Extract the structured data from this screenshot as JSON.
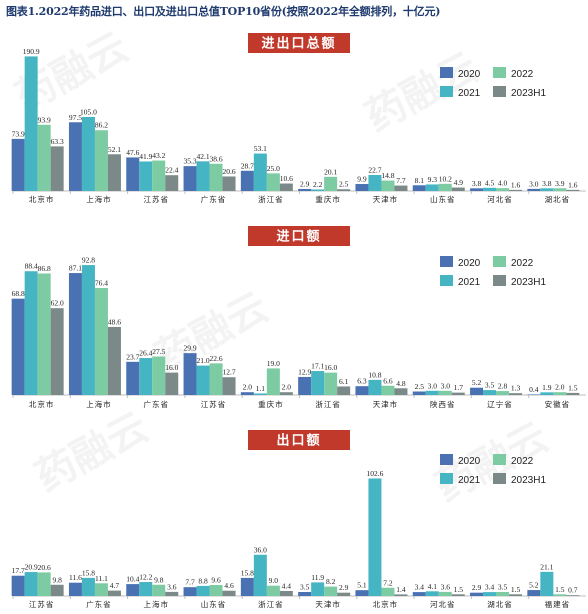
{
  "figure_title": "图表1.2022年药品进口、出口及进出口总值TOP10省份(按照2022年全额排列，十亿元)",
  "watermark_text": "药融云",
  "colors": {
    "2020": "#4a72b2",
    "2022": "#7ccba2",
    "2021": "#45b5c4",
    "2023H1": "#7b8a89",
    "title_box": "#c0392b"
  },
  "chart_data": [
    {
      "type": "bar",
      "title": "进出口总额",
      "categories": [
        "北京市",
        "上海市",
        "江苏省",
        "广东省",
        "浙江省",
        "重庆市",
        "天津市",
        "山东省",
        "河北省",
        "湖北省"
      ],
      "series": [
        {
          "name": "2020",
          "values": [
            73.9,
            97.5,
            47.6,
            35.3,
            28.7,
            2.9,
            9.9,
            8.1,
            3.8,
            3.0
          ]
        },
        {
          "name": "2021",
          "values": [
            190.9,
            105.0,
            41.9,
            42.1,
            53.1,
            2.2,
            22.7,
            9.3,
            4.5,
            3.8
          ]
        },
        {
          "name": "2022",
          "values": [
            93.9,
            86.2,
            43.2,
            38.6,
            25.0,
            20.1,
            14.8,
            10.2,
            4.0,
            3.9
          ]
        },
        {
          "name": "2023H1",
          "values": [
            63.3,
            52.1,
            22.4,
            20.6,
            10.6,
            2.5,
            7.7,
            4.9,
            1.6,
            1.6
          ]
        }
      ],
      "legend": [
        "2020",
        "2022",
        "2021",
        "2023H1"
      ],
      "ylim": [
        0,
        200
      ]
    },
    {
      "type": "bar",
      "title": "进口额",
      "categories": [
        "北京市",
        "上海市",
        "广东省",
        "江苏省",
        "重庆市",
        "浙江省",
        "天津市",
        "陕西省",
        "辽宁省",
        "安徽省"
      ],
      "series": [
        {
          "name": "2020",
          "values": [
            68.8,
            87.1,
            23.7,
            29.9,
            2.0,
            12.9,
            6.3,
            2.5,
            5.2,
            0.4
          ]
        },
        {
          "name": "2021",
          "values": [
            88.4,
            92.8,
            26.4,
            21.0,
            1.1,
            17.1,
            10.8,
            3.0,
            3.5,
            1.9
          ]
        },
        {
          "name": "2022",
          "values": [
            86.8,
            76.4,
            27.5,
            22.6,
            19.0,
            16.0,
            6.6,
            3.0,
            2.8,
            2.0
          ]
        },
        {
          "name": "2023H1",
          "values": [
            62.0,
            48.6,
            16.0,
            12.7,
            2.0,
            6.1,
            4.8,
            1.7,
            1.3,
            1.5
          ]
        }
      ],
      "legend": [
        "2020",
        "2022",
        "2021",
        "2023H1"
      ],
      "ylim": [
        0,
        100
      ]
    },
    {
      "type": "bar",
      "title": "出口额",
      "categories": [
        "江苏省",
        "广东省",
        "上海市",
        "山东省",
        "浙江省",
        "天津市",
        "北京市",
        "河北省",
        "湖北省",
        "福建省"
      ],
      "series": [
        {
          "name": "2020",
          "values": [
            17.7,
            11.6,
            10.4,
            7.7,
            15.8,
            3.5,
            5.1,
            3.4,
            2.9,
            5.2
          ]
        },
        {
          "name": "2021",
          "values": [
            20.9,
            15.8,
            12.2,
            8.8,
            36.0,
            11.9,
            102.6,
            4.1,
            3.4,
            21.1
          ]
        },
        {
          "name": "2022",
          "values": [
            20.6,
            11.1,
            9.8,
            9.6,
            9.0,
            8.2,
            7.2,
            3.6,
            3.5,
            1.5
          ]
        },
        {
          "name": "2023H1",
          "values": [
            9.8,
            4.7,
            3.6,
            4.6,
            4.4,
            2.9,
            1.4,
            1.5,
            1.5,
            0.7
          ]
        }
      ],
      "legend": [
        "2020",
        "2022",
        "2021",
        "2023H1"
      ],
      "ylim": [
        0,
        110
      ]
    }
  ]
}
